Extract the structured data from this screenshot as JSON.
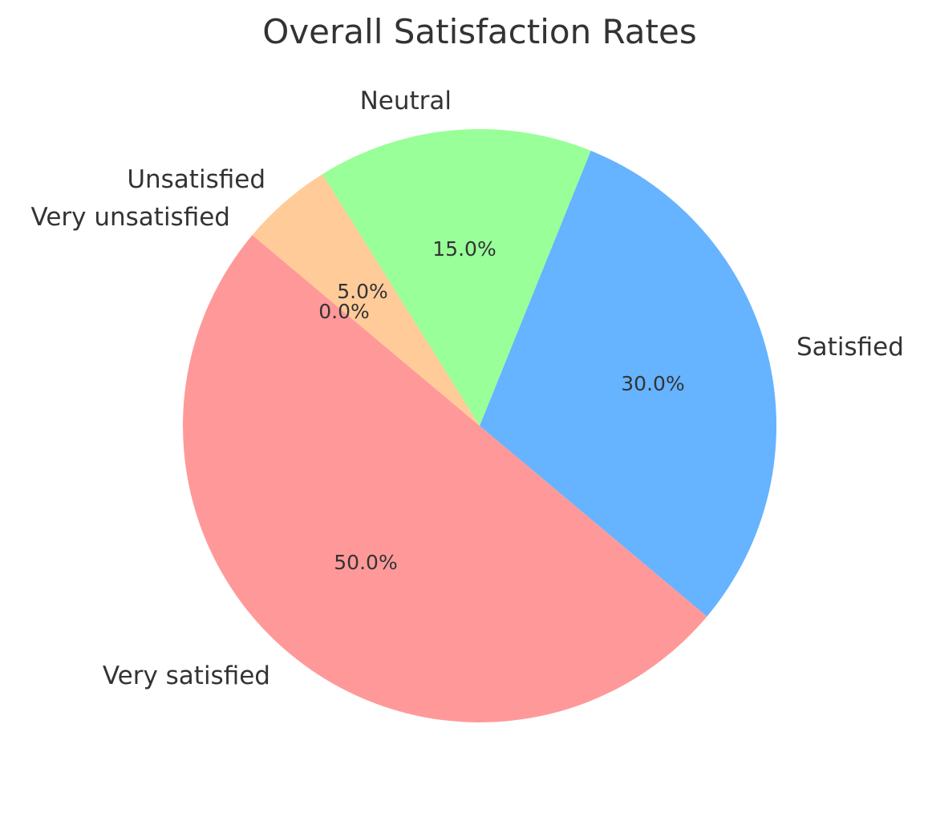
{
  "chart_data": {
    "type": "pie",
    "title": "Overall Satisfaction Rates",
    "categories": [
      "Very satisfied",
      "Satisfied",
      "Neutral",
      "Unsatisfied",
      "Very unsatisfied"
    ],
    "values": [
      50.0,
      30.0,
      15.0,
      5.0,
      0.0
    ],
    "value_labels": [
      "50.0%",
      "30.0%",
      "15.0%",
      "5.0%",
      "0.0%"
    ],
    "colors": [
      "#ff9999",
      "#66b3ff",
      "#99ff99",
      "#ffcc99",
      "#c2c2f0"
    ],
    "start_angle": 140,
    "counterclock": true,
    "legend": null
  },
  "labels": {
    "title": "Overall Satisfaction Rates",
    "very_satisfied": "Very satisfied",
    "satisfied": "Satisfied",
    "neutral": "Neutral",
    "unsatisfied": "Unsatisfied",
    "very_unsatisfied": "Very unsatisfied",
    "pct_very_satisfied": "50.0%",
    "pct_satisfied": "30.0%",
    "pct_neutral": "15.0%",
    "pct_unsatisfied": "5.0%",
    "pct_very_unsatisfied": "0.0%"
  }
}
